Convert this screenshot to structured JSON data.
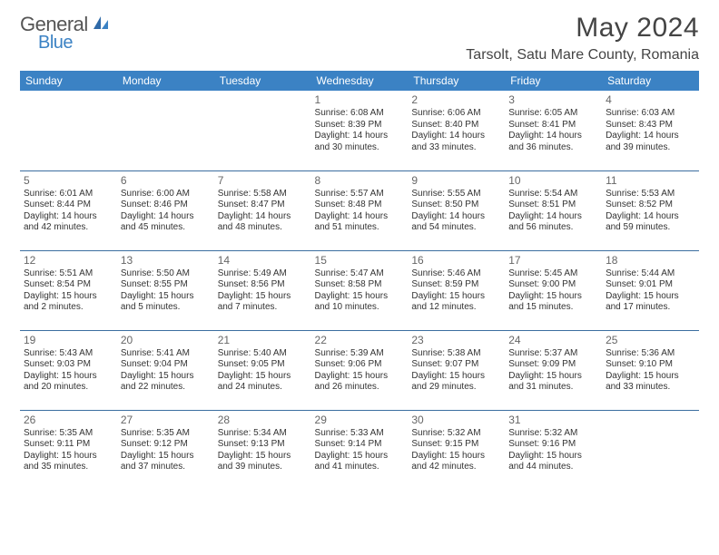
{
  "brand": {
    "part1": "General",
    "part2": "Blue"
  },
  "title": "May 2024",
  "location": "Tarsolt, Satu Mare County, Romania",
  "weekdays": [
    "Sunday",
    "Monday",
    "Tuesday",
    "Wednesday",
    "Thursday",
    "Friday",
    "Saturday"
  ],
  "colors": {
    "header_bg": "#3b82c4",
    "header_fg": "#ffffff",
    "rule": "#3b6ea0"
  },
  "weeks": [
    [
      null,
      null,
      null,
      {
        "n": "1",
        "sr": "6:08 AM",
        "ss": "8:39 PM",
        "dl": "14 hours and 30 minutes."
      },
      {
        "n": "2",
        "sr": "6:06 AM",
        "ss": "8:40 PM",
        "dl": "14 hours and 33 minutes."
      },
      {
        "n": "3",
        "sr": "6:05 AM",
        "ss": "8:41 PM",
        "dl": "14 hours and 36 minutes."
      },
      {
        "n": "4",
        "sr": "6:03 AM",
        "ss": "8:43 PM",
        "dl": "14 hours and 39 minutes."
      }
    ],
    [
      {
        "n": "5",
        "sr": "6:01 AM",
        "ss": "8:44 PM",
        "dl": "14 hours and 42 minutes."
      },
      {
        "n": "6",
        "sr": "6:00 AM",
        "ss": "8:46 PM",
        "dl": "14 hours and 45 minutes."
      },
      {
        "n": "7",
        "sr": "5:58 AM",
        "ss": "8:47 PM",
        "dl": "14 hours and 48 minutes."
      },
      {
        "n": "8",
        "sr": "5:57 AM",
        "ss": "8:48 PM",
        "dl": "14 hours and 51 minutes."
      },
      {
        "n": "9",
        "sr": "5:55 AM",
        "ss": "8:50 PM",
        "dl": "14 hours and 54 minutes."
      },
      {
        "n": "10",
        "sr": "5:54 AM",
        "ss": "8:51 PM",
        "dl": "14 hours and 56 minutes."
      },
      {
        "n": "11",
        "sr": "5:53 AM",
        "ss": "8:52 PM",
        "dl": "14 hours and 59 minutes."
      }
    ],
    [
      {
        "n": "12",
        "sr": "5:51 AM",
        "ss": "8:54 PM",
        "dl": "15 hours and 2 minutes."
      },
      {
        "n": "13",
        "sr": "5:50 AM",
        "ss": "8:55 PM",
        "dl": "15 hours and 5 minutes."
      },
      {
        "n": "14",
        "sr": "5:49 AM",
        "ss": "8:56 PM",
        "dl": "15 hours and 7 minutes."
      },
      {
        "n": "15",
        "sr": "5:47 AM",
        "ss": "8:58 PM",
        "dl": "15 hours and 10 minutes."
      },
      {
        "n": "16",
        "sr": "5:46 AM",
        "ss": "8:59 PM",
        "dl": "15 hours and 12 minutes."
      },
      {
        "n": "17",
        "sr": "5:45 AM",
        "ss": "9:00 PM",
        "dl": "15 hours and 15 minutes."
      },
      {
        "n": "18",
        "sr": "5:44 AM",
        "ss": "9:01 PM",
        "dl": "15 hours and 17 minutes."
      }
    ],
    [
      {
        "n": "19",
        "sr": "5:43 AM",
        "ss": "9:03 PM",
        "dl": "15 hours and 20 minutes."
      },
      {
        "n": "20",
        "sr": "5:41 AM",
        "ss": "9:04 PM",
        "dl": "15 hours and 22 minutes."
      },
      {
        "n": "21",
        "sr": "5:40 AM",
        "ss": "9:05 PM",
        "dl": "15 hours and 24 minutes."
      },
      {
        "n": "22",
        "sr": "5:39 AM",
        "ss": "9:06 PM",
        "dl": "15 hours and 26 minutes."
      },
      {
        "n": "23",
        "sr": "5:38 AM",
        "ss": "9:07 PM",
        "dl": "15 hours and 29 minutes."
      },
      {
        "n": "24",
        "sr": "5:37 AM",
        "ss": "9:09 PM",
        "dl": "15 hours and 31 minutes."
      },
      {
        "n": "25",
        "sr": "5:36 AM",
        "ss": "9:10 PM",
        "dl": "15 hours and 33 minutes."
      }
    ],
    [
      {
        "n": "26",
        "sr": "5:35 AM",
        "ss": "9:11 PM",
        "dl": "15 hours and 35 minutes."
      },
      {
        "n": "27",
        "sr": "5:35 AM",
        "ss": "9:12 PM",
        "dl": "15 hours and 37 minutes."
      },
      {
        "n": "28",
        "sr": "5:34 AM",
        "ss": "9:13 PM",
        "dl": "15 hours and 39 minutes."
      },
      {
        "n": "29",
        "sr": "5:33 AM",
        "ss": "9:14 PM",
        "dl": "15 hours and 41 minutes."
      },
      {
        "n": "30",
        "sr": "5:32 AM",
        "ss": "9:15 PM",
        "dl": "15 hours and 42 minutes."
      },
      {
        "n": "31",
        "sr": "5:32 AM",
        "ss": "9:16 PM",
        "dl": "15 hours and 44 minutes."
      },
      null
    ]
  ],
  "labels": {
    "sunrise": "Sunrise:",
    "sunset": "Sunset:",
    "daylight": "Daylight:"
  }
}
